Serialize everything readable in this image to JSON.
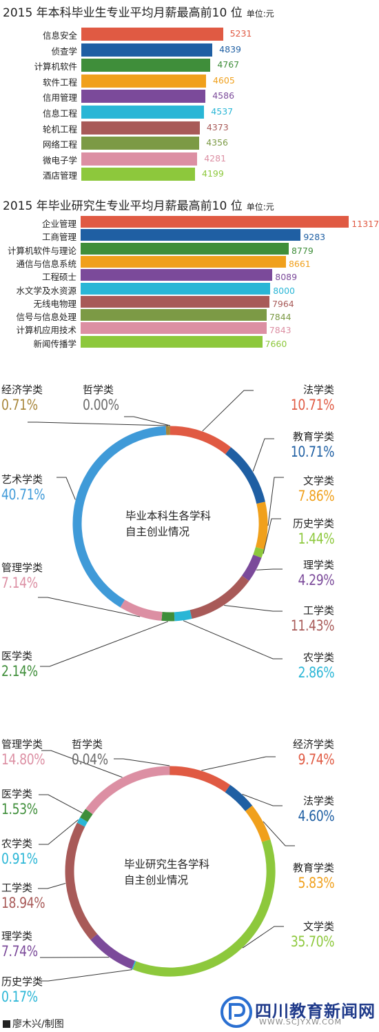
{
  "colors": {
    "red": "#e05a43",
    "blue": "#1f5fa3",
    "green": "#3f8e3a",
    "orange": "#f0a01c",
    "purple": "#7b4a9a",
    "cyan": "#2ab6d6",
    "brown": "#a85a58",
    "olive": "#7c9a45",
    "pink": "#dc8fa3",
    "lime": "#8dc83c",
    "skyblue": "#3f9ad8",
    "gold": "#a8863a",
    "grey": "#6a6a6a"
  },
  "chart_data": [
    {
      "type": "bar",
      "title": "2015 年本科毕业生专业平均月薪最高前10 位",
      "unit": "单位:元",
      "categories": [
        "信息安全",
        "侦查学",
        "计算机软件",
        "软件工程",
        "信用管理",
        "信息工程",
        "轮机工程",
        "网络工程",
        "微电子学",
        "酒店管理"
      ],
      "values": [
        5231,
        4839,
        4767,
        4605,
        4586,
        4537,
        4373,
        4356,
        4281,
        4199
      ],
      "value_labels": [
        "5231",
        "4839",
        "4767",
        "4605",
        "4586",
        "4537",
        "4373",
        "4356",
        "4281",
        "4199"
      ],
      "colors": [
        "#e05a43",
        "#1f5fa3",
        "#3f8e3a",
        "#f0a01c",
        "#7b4a9a",
        "#2ab6d6",
        "#a85a58",
        "#7c9a45",
        "#dc8fa3",
        "#8dc83c"
      ]
    },
    {
      "type": "bar",
      "title": "2015 年毕业研究生专业平均月薪最高前10 位",
      "unit": "单位:元",
      "categories": [
        "企业管理",
        "工商管理",
        "计算机软件与理论",
        "通信与信息系统",
        "工程硕士",
        "水文学及水资源",
        "无线电物理",
        "信号与信息处理",
        "计算机应用技术",
        "新闻传播学"
      ],
      "values": [
        11317,
        9283,
        8779,
        8661,
        8089,
        8000,
        7964,
        7844,
        7843,
        7660
      ],
      "value_labels": [
        "11317",
        "9283",
        "8779",
        "8661",
        "8089",
        "8000",
        "7964",
        "7844",
        "7843",
        "7660"
      ],
      "colors": [
        "#e05a43",
        "#1f5fa3",
        "#3f8e3a",
        "#f0a01c",
        "#7b4a9a",
        "#2ab6d6",
        "#a85a58",
        "#7c9a45",
        "#dc8fa3",
        "#8dc83c"
      ]
    },
    {
      "type": "pie",
      "title": "毕业本科生各学科 自主创业情况",
      "center_lines": [
        "毕业本科生各学科",
        "自主创业情况"
      ],
      "slices": [
        {
          "name": "经济学类",
          "value": 0.71,
          "label": "0.71%",
          "color": "#a8863a"
        },
        {
          "name": "哲学类",
          "value": 0.0,
          "label": "0.00%",
          "color": "#6a6a6a"
        },
        {
          "name": "法学类",
          "value": 10.71,
          "label": "10.71%",
          "color": "#e05a43"
        },
        {
          "name": "教育学类",
          "value": 10.71,
          "label": "10.71%",
          "color": "#1f5fa3"
        },
        {
          "name": "文学类",
          "value": 7.86,
          "label": "7.86%",
          "color": "#f0a01c"
        },
        {
          "name": "历史学类",
          "value": 1.44,
          "label": "1.44%",
          "color": "#8dc83c"
        },
        {
          "name": "理学类",
          "value": 4.29,
          "label": "4.29%",
          "color": "#7b4a9a"
        },
        {
          "name": "工学类",
          "value": 11.43,
          "label": "11.43%",
          "color": "#a85a58"
        },
        {
          "name": "农学类",
          "value": 2.86,
          "label": "2.86%",
          "color": "#2ab6d6"
        },
        {
          "name": "医学类",
          "value": 2.14,
          "label": "2.14%",
          "color": "#3f8e3a"
        },
        {
          "name": "管理学类",
          "value": 7.14,
          "label": "7.14%",
          "color": "#dc8fa3"
        },
        {
          "name": "艺术学类",
          "value": 40.71,
          "label": "40.71%",
          "color": "#3f9ad8"
        }
      ]
    },
    {
      "type": "pie",
      "title": "毕业研究生各学科 自主创业情况",
      "center_lines": [
        "毕业研究生各学科",
        "自主创业情况"
      ],
      "slices": [
        {
          "name": "哲学类",
          "value": 0.04,
          "label": "0.04%",
          "color": "#6a6a6a"
        },
        {
          "name": "经济学类",
          "value": 9.74,
          "label": "9.74%",
          "color": "#e05a43"
        },
        {
          "name": "法学类",
          "value": 4.6,
          "label": "4.60%",
          "color": "#1f5fa3"
        },
        {
          "name": "教育学类",
          "value": 5.83,
          "label": "5.83%",
          "color": "#f0a01c"
        },
        {
          "name": "文学类",
          "value": 35.7,
          "label": "35.70%",
          "color": "#8dc83c"
        },
        {
          "name": "历史学类",
          "value": 0.17,
          "label": "0.17%",
          "color": "#2ab6d6"
        },
        {
          "name": "理学类",
          "value": 7.74,
          "label": "7.74%",
          "color": "#7b4a9a"
        },
        {
          "name": "工学类",
          "value": 18.94,
          "label": "18.94%",
          "color": "#a85a58"
        },
        {
          "name": "农学类",
          "value": 0.91,
          "label": "0.91%",
          "color": "#2ab6d6"
        },
        {
          "name": "医学类",
          "value": 1.53,
          "label": "1.53%",
          "color": "#3f8e3a"
        },
        {
          "name": "管理学类",
          "value": 14.8,
          "label": "14.80%",
          "color": "#dc8fa3"
        }
      ]
    }
  ],
  "credit": "廖木兴/制图",
  "watermark": {
    "name": "四川教育新闻网",
    "url": "WWW.SCJYXW.COM"
  }
}
